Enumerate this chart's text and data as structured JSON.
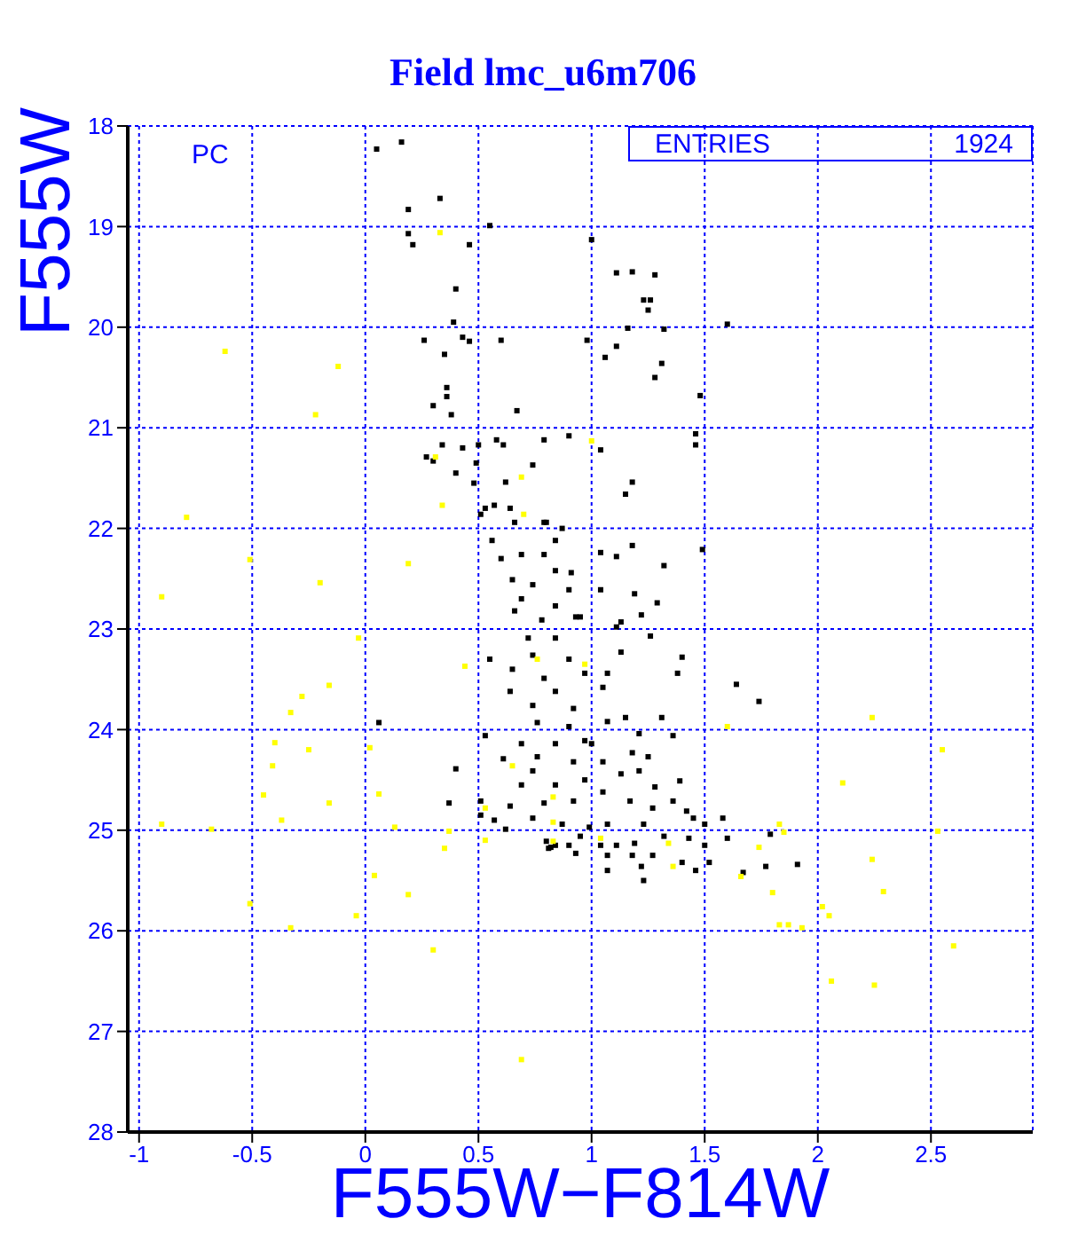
{
  "chart_data": {
    "type": "scatter",
    "title": "Field lmc_u6m706",
    "xlabel": "F555W−F814W",
    "ylabel": "F555W",
    "annotations": [
      "PC",
      "ENTRIES",
      "1924"
    ],
    "marker": "square",
    "grid": true,
    "xlim": [
      -1.05,
      2.95
    ],
    "ylim": [
      28,
      18
    ],
    "xticks": [
      -1,
      -0.5,
      0,
      0.5,
      1,
      1.5,
      2,
      2.5
    ],
    "yticks": [
      18,
      19,
      20,
      21,
      22,
      23,
      24,
      25,
      26,
      27,
      28
    ],
    "series": [
      {
        "color": "#000000",
        "x": [
          0.16,
          0.05,
          0.33,
          0.19,
          0.55,
          0.19,
          0.21,
          0.46,
          0.4,
          0.39,
          0.43,
          0.46,
          0.26,
          0.6,
          0.98,
          0.35,
          0.36,
          0.36,
          0.3,
          0.38,
          0.67,
          1.0,
          0.34,
          0.43,
          0.27,
          0.3,
          0.5,
          0.58,
          0.61,
          0.79,
          0.9,
          0.49,
          0.4,
          0.74,
          0.62,
          0.48,
          0.57,
          0.64,
          0.53,
          0.79,
          0.51,
          1.11,
          1.18,
          1.28,
          1.23,
          1.26,
          1.25,
          1.32,
          1.16,
          1.6,
          1.11,
          1.06,
          1.31,
          1.28,
          1.48,
          1.46,
          1.46,
          1.04,
          1.18,
          1.15,
          0.66,
          0.8,
          0.56,
          0.69,
          0.79,
          0.6,
          0.84,
          0.65,
          0.74,
          0.9,
          0.69,
          0.84,
          0.66,
          0.78,
          0.95,
          0.72,
          0.84,
          0.55,
          0.65,
          0.74,
          0.9,
          0.97,
          0.79,
          0.64,
          0.84,
          0.74,
          0.92,
          0.06,
          0.76,
          0.9,
          0.53,
          0.69,
          0.84,
          0.97,
          0.61,
          0.76,
          0.92,
          0.4,
          0.74,
          0.69,
          0.84,
          0.97,
          0.51,
          0.64,
          0.79,
          0.92,
          0.37,
          0.57,
          0.74,
          0.87,
          0.99,
          0.62,
          0.8,
          0.9,
          0.95,
          0.82,
          0.87,
          0.84,
          1.04,
          1.11,
          1.18,
          1.32,
          1.49,
          0.91,
          1.04,
          1.19,
          1.29,
          1.22,
          1.13,
          0.93,
          1.26,
          1.11,
          1.4,
          1.38,
          1.13,
          1.07,
          1.05,
          1.64,
          1.74,
          1.15,
          1.31,
          1.07,
          1.21,
          1.36,
          1.0,
          1.18,
          1.25,
          1.05,
          1.13,
          1.21,
          1.39,
          1.28,
          1.05,
          1.17,
          1.27,
          1.36,
          1.42,
          1.5,
          1.45,
          1.58,
          1.79,
          1.32,
          1.23,
          1.07,
          1.43,
          1.5,
          1.6,
          1.19,
          1.11,
          1.04,
          1.27,
          1.18,
          1.07,
          0.93,
          1.4,
          1.52,
          1.22,
          1.77,
          1.91,
          1.07,
          1.46,
          1.67,
          1.23,
          0.84,
          0.51,
          0.81
        ],
        "values": [
          18.16,
          18.23,
          18.72,
          18.83,
          18.99,
          19.07,
          19.18,
          19.18,
          19.62,
          19.95,
          20.1,
          20.14,
          20.13,
          20.13,
          20.13,
          20.27,
          20.6,
          20.69,
          20.78,
          20.87,
          20.83,
          19.13,
          21.17,
          21.2,
          21.29,
          21.33,
          21.17,
          21.12,
          21.17,
          21.12,
          21.08,
          21.35,
          21.45,
          21.37,
          21.54,
          21.55,
          21.77,
          21.8,
          21.8,
          21.94,
          21.86,
          19.46,
          19.45,
          19.48,
          19.73,
          19.73,
          19.83,
          20.02,
          20.01,
          19.97,
          20.19,
          20.3,
          20.36,
          20.5,
          20.68,
          21.06,
          21.17,
          21.22,
          21.54,
          21.66,
          21.94,
          21.94,
          22.12,
          22.26,
          22.26,
          22.3,
          22.42,
          22.51,
          22.56,
          22.61,
          22.7,
          22.77,
          22.82,
          22.91,
          22.88,
          23.09,
          23.09,
          23.3,
          23.4,
          23.26,
          23.3,
          23.44,
          23.49,
          23.62,
          23.62,
          23.76,
          23.79,
          23.93,
          23.93,
          23.97,
          24.06,
          24.14,
          24.14,
          24.11,
          24.29,
          24.27,
          24.32,
          24.39,
          24.41,
          24.55,
          24.55,
          24.5,
          24.71,
          24.76,
          24.73,
          24.71,
          24.73,
          24.9,
          24.88,
          24.94,
          24.97,
          24.99,
          25.11,
          25.15,
          25.06,
          25.17,
          22.0,
          22.12,
          22.24,
          22.28,
          22.17,
          22.37,
          22.21,
          22.44,
          22.61,
          22.65,
          22.74,
          22.86,
          22.93,
          22.88,
          23.07,
          22.98,
          23.28,
          23.44,
          23.23,
          23.44,
          23.58,
          23.55,
          23.72,
          23.88,
          23.88,
          23.92,
          24.04,
          24.06,
          24.14,
          24.23,
          24.27,
          24.32,
          24.44,
          24.41,
          24.51,
          24.57,
          24.62,
          24.71,
          24.78,
          24.71,
          24.81,
          24.94,
          24.88,
          24.88,
          25.04,
          25.06,
          24.94,
          24.94,
          25.08,
          25.15,
          25.08,
          25.13,
          25.15,
          25.15,
          25.25,
          25.25,
          25.25,
          25.23,
          25.32,
          25.32,
          25.36,
          25.36,
          25.34,
          25.4,
          25.4,
          25.42,
          25.5,
          25.15,
          24.85,
          25.18
        ]
      },
      {
        "color": "#ffff00",
        "x": [
          -0.62,
          -0.12,
          -0.22,
          0.33,
          1.0,
          0.69,
          0.7,
          0.34,
          0.31,
          -0.79,
          -0.51,
          -0.2,
          0.19,
          -0.9,
          -0.03,
          0.44,
          -0.16,
          -0.28,
          -0.33,
          -0.4,
          -0.25,
          -0.41,
          0.02,
          -0.45,
          -0.16,
          0.06,
          -0.37,
          -0.9,
          -0.68,
          0.13,
          0.37,
          0.53,
          0.53,
          0.35,
          0.04,
          0.19,
          -0.51,
          -0.04,
          0.65,
          0.76,
          0.97,
          0.83,
          0.83,
          1.6,
          2.24,
          2.55,
          2.11,
          1.83,
          1.85,
          2.53,
          1.74,
          2.24,
          1.66,
          1.8,
          2.29,
          2.02,
          2.05,
          1.83,
          1.87,
          1.04,
          1.34,
          1.36,
          0.83,
          -0.33,
          0.3,
          0.69,
          1.93,
          2.06,
          2.25,
          2.6
        ],
        "values": [
          20.24,
          20.39,
          20.87,
          19.06,
          21.13,
          21.49,
          21.86,
          21.77,
          21.29,
          21.89,
          22.31,
          22.54,
          22.35,
          22.68,
          23.09,
          23.37,
          23.56,
          23.67,
          23.83,
          24.13,
          24.2,
          24.36,
          24.18,
          24.65,
          24.73,
          24.64,
          24.9,
          24.94,
          24.99,
          24.97,
          25.01,
          24.78,
          25.1,
          25.18,
          25.45,
          25.64,
          25.73,
          25.85,
          24.36,
          23.3,
          23.35,
          24.67,
          25.11,
          23.97,
          23.88,
          24.2,
          24.53,
          24.94,
          25.02,
          25.01,
          25.17,
          25.29,
          25.46,
          25.62,
          25.61,
          25.76,
          25.85,
          25.94,
          25.94,
          25.08,
          25.13,
          25.36,
          24.92,
          25.97,
          26.19,
          27.28,
          25.97,
          26.5,
          26.54,
          26.15
        ]
      }
    ]
  }
}
